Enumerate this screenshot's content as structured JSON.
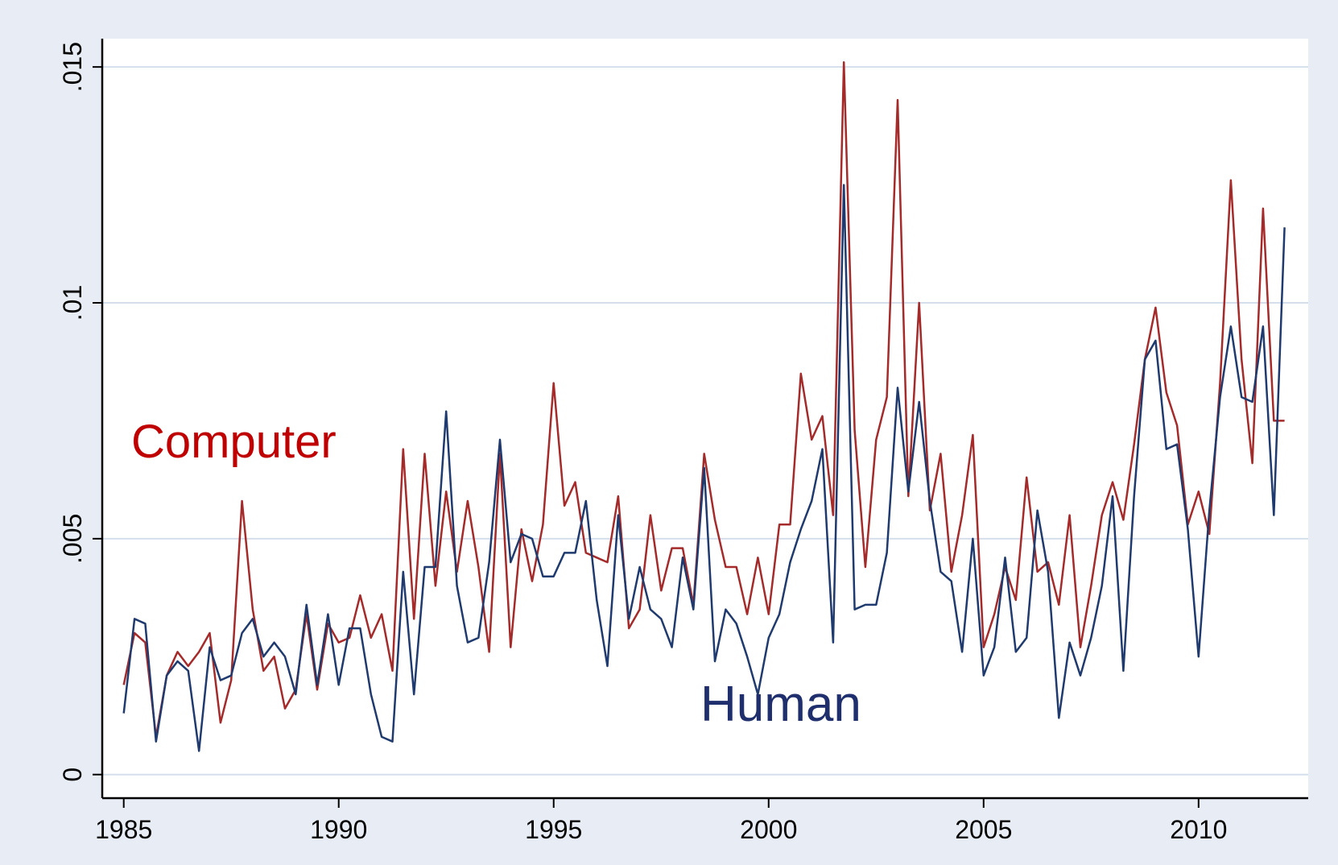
{
  "chart_data": {
    "type": "line",
    "x": [
      1985,
      1985.25,
      1985.5,
      1985.75,
      1986,
      1986.25,
      1986.5,
      1986.75,
      1987,
      1987.25,
      1987.5,
      1987.75,
      1988,
      1988.25,
      1988.5,
      1988.75,
      1989,
      1989.25,
      1989.5,
      1989.75,
      1990,
      1990.25,
      1990.5,
      1990.75,
      1991,
      1991.25,
      1991.5,
      1991.75,
      1992,
      1992.25,
      1992.5,
      1992.75,
      1993,
      1993.25,
      1993.5,
      1993.75,
      1994,
      1994.25,
      1994.5,
      1994.75,
      1995,
      1995.25,
      1995.5,
      1995.75,
      1996,
      1996.25,
      1996.5,
      1996.75,
      1997,
      1997.25,
      1997.5,
      1997.75,
      1998,
      1998.25,
      1998.5,
      1998.75,
      1999,
      1999.25,
      1999.5,
      1999.75,
      2000,
      2000.25,
      2000.5,
      2000.75,
      2001,
      2001.25,
      2001.5,
      2001.75,
      2002,
      2002.25,
      2002.5,
      2002.75,
      2003,
      2003.25,
      2003.5,
      2003.75,
      2004,
      2004.25,
      2004.5,
      2004.75,
      2005,
      2005.25,
      2005.5,
      2005.75,
      2006,
      2006.25,
      2006.5,
      2006.75,
      2007,
      2007.25,
      2007.5,
      2007.75,
      2008,
      2008.25,
      2008.5,
      2008.75,
      2009,
      2009.25,
      2009.5,
      2009.75,
      2010,
      2010.25,
      2010.5,
      2010.75,
      2011,
      2011.25,
      2011.5,
      2011.75,
      2012
    ],
    "series": [
      {
        "name": "Computer",
        "color": "#a52a2a",
        "values": [
          0.0019,
          0.003,
          0.0028,
          0.0008,
          0.0021,
          0.0026,
          0.0023,
          0.0026,
          0.003,
          0.0011,
          0.002,
          0.0058,
          0.0035,
          0.0022,
          0.0025,
          0.0014,
          0.0018,
          0.0034,
          0.0018,
          0.0032,
          0.0028,
          0.0029,
          0.0038,
          0.0029,
          0.0034,
          0.0022,
          0.0069,
          0.0033,
          0.0068,
          0.004,
          0.006,
          0.0043,
          0.0058,
          0.0044,
          0.0026,
          0.0068,
          0.0027,
          0.0052,
          0.0041,
          0.0053,
          0.0083,
          0.0057,
          0.0062,
          0.0047,
          0.0046,
          0.0045,
          0.0059,
          0.0031,
          0.0035,
          0.0055,
          0.0039,
          0.0048,
          0.0048,
          0.0036,
          0.0068,
          0.0054,
          0.0044,
          0.0044,
          0.0034,
          0.0046,
          0.0034,
          0.0053,
          0.0053,
          0.0085,
          0.0071,
          0.0076,
          0.0055,
          0.0151,
          0.0073,
          0.0044,
          0.0071,
          0.008,
          0.0143,
          0.0059,
          0.01,
          0.0056,
          0.0068,
          0.0043,
          0.0055,
          0.0072,
          0.0027,
          0.0034,
          0.0044,
          0.0037,
          0.0063,
          0.0043,
          0.0045,
          0.0036,
          0.0055,
          0.0027,
          0.004,
          0.0055,
          0.0062,
          0.0054,
          0.007,
          0.0088,
          0.0099,
          0.0081,
          0.0074,
          0.0053,
          0.006,
          0.0051,
          0.0083,
          0.0126,
          0.0088,
          0.0066,
          0.012,
          0.0075,
          0.0075
        ]
      },
      {
        "name": "Human",
        "color": "#1f3a6e",
        "values": [
          0.0013,
          0.0033,
          0.0032,
          0.0007,
          0.0021,
          0.0024,
          0.0022,
          0.0005,
          0.0027,
          0.002,
          0.0021,
          0.003,
          0.0033,
          0.0025,
          0.0028,
          0.0025,
          0.0017,
          0.0036,
          0.0019,
          0.0034,
          0.0019,
          0.0031,
          0.0031,
          0.0017,
          0.0008,
          0.0007,
          0.0043,
          0.0017,
          0.0044,
          0.0044,
          0.0077,
          0.004,
          0.0028,
          0.0029,
          0.0045,
          0.0071,
          0.0045,
          0.0051,
          0.005,
          0.0042,
          0.0042,
          0.0047,
          0.0047,
          0.0058,
          0.0037,
          0.0023,
          0.0055,
          0.0033,
          0.0044,
          0.0035,
          0.0033,
          0.0027,
          0.0046,
          0.0035,
          0.0065,
          0.0024,
          0.0035,
          0.0032,
          0.0025,
          0.0017,
          0.0029,
          0.0034,
          0.0045,
          0.0052,
          0.0058,
          0.0069,
          0.0028,
          0.0125,
          0.0035,
          0.0036,
          0.0036,
          0.0047,
          0.0082,
          0.006,
          0.0079,
          0.0058,
          0.0043,
          0.0041,
          0.0026,
          0.005,
          0.0021,
          0.0027,
          0.0046,
          0.0026,
          0.0029,
          0.0056,
          0.0043,
          0.0012,
          0.0028,
          0.0021,
          0.0029,
          0.004,
          0.0059,
          0.0022,
          0.0059,
          0.0088,
          0.0092,
          0.0069,
          0.007,
          0.0052,
          0.0025,
          0.0056,
          0.008,
          0.0095,
          0.008,
          0.0079,
          0.0095,
          0.0055,
          0.0116
        ]
      }
    ],
    "xlim": [
      1984.5,
      2012.55
    ],
    "xticks": [
      1985,
      1990,
      1995,
      2000,
      2005,
      2010
    ],
    "ylim": [
      -0.0005,
      0.0156
    ],
    "yticks": [
      0,
      {
        "value": 0.005,
        "label": ".005"
      },
      {
        "value": 0.01,
        "label": ".01"
      },
      {
        "value": 0.015,
        "label": ".015"
      }
    ],
    "grid": true
  }
}
